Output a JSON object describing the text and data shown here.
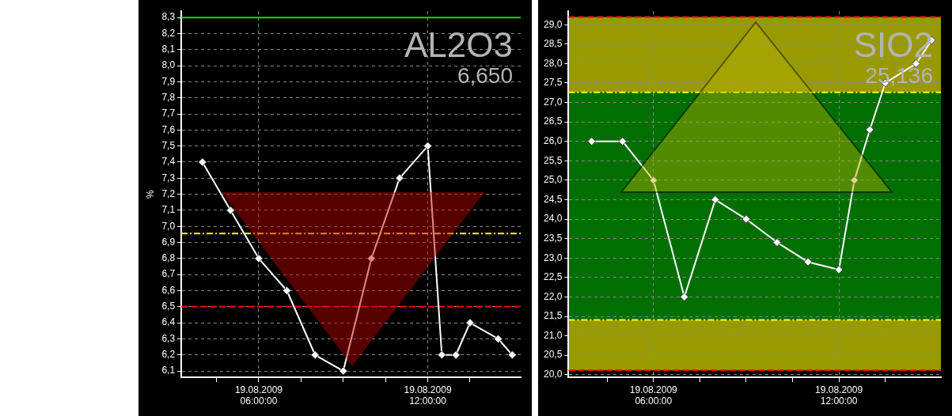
{
  "chart_data": [
    {
      "type": "line",
      "ylabel": "%",
      "annotations": [
        "AL2O3",
        "6,650"
      ],
      "grid": true,
      "marker": "diamond",
      "line_style": "solid",
      "x": [
        "2009-08-19T04:00",
        "2009-08-19T05:00",
        "2009-08-19T06:00",
        "2009-08-19T07:00",
        "2009-08-19T08:00",
        "2009-08-19T09:00",
        "2009-08-19T10:00",
        "2009-08-19T11:00",
        "2009-08-19T12:00",
        "2009-08-19T12:30",
        "2009-08-19T13:00",
        "2009-08-19T13:30",
        "2009-08-19T14:30",
        "2009-08-19T15:00"
      ],
      "series": [
        {
          "color": "#ffffff",
          "values": [
            7.4,
            7.1,
            6.8,
            6.6,
            6.2,
            6.1,
            6.8,
            7.3,
            7.5,
            6.2,
            6.2,
            6.4,
            6.3,
            6.2
          ]
        }
      ],
      "xlim": [
        "2009-08-19T03:15",
        "2009-08-19T15:18"
      ],
      "xticks": [
        {
          "value": "2009-08-19T04:30",
          "label": null
        },
        {
          "value": "2009-08-19T06:00",
          "label": "19.08.2009\n06:00:00"
        },
        {
          "value": "2009-08-19T07:30",
          "label": null
        },
        {
          "value": "2009-08-19T09:00",
          "label": null
        },
        {
          "value": "2009-08-19T10:30",
          "label": null
        },
        {
          "value": "2009-08-19T12:00",
          "label": "19.08.2009\n12:00:00"
        },
        {
          "value": "2009-08-19T13:30",
          "label": null
        }
      ],
      "ylim": [
        6.06,
        8.34
      ],
      "yticks": [
        {
          "value": 6.1,
          "label": "6,1"
        },
        {
          "value": 6.2,
          "label": "6,2"
        },
        {
          "value": 6.3,
          "label": "6,3"
        },
        {
          "value": 6.4,
          "label": "6,4"
        },
        {
          "value": 6.5,
          "label": "6,5"
        },
        {
          "value": 6.6,
          "label": "6,6"
        },
        {
          "value": 6.7,
          "label": "6,7"
        },
        {
          "value": 6.8,
          "label": "6,8"
        },
        {
          "value": 6.9,
          "label": "6,9"
        },
        {
          "value": 7.0,
          "label": "7,0"
        },
        {
          "value": 7.1,
          "label": "7,1"
        },
        {
          "value": 7.2,
          "label": "7,2"
        },
        {
          "value": 7.3,
          "label": "7,3"
        },
        {
          "value": 7.4,
          "label": "7,4"
        },
        {
          "value": 7.5,
          "label": "7,5"
        },
        {
          "value": 7.6,
          "label": "7,6"
        },
        {
          "value": 7.7,
          "label": "7,7"
        },
        {
          "value": 7.8,
          "label": "7,8"
        },
        {
          "value": 7.9,
          "label": "7,9"
        },
        {
          "value": 8.0,
          "label": "8,0"
        },
        {
          "value": 8.1,
          "label": "8,1"
        },
        {
          "value": 8.2,
          "label": "8,2"
        },
        {
          "value": 8.3,
          "label": "8,3"
        }
      ],
      "ref_lines": [
        {
          "axis": "y",
          "value": 8.3,
          "color": "#00e000",
          "line_style": "solid"
        },
        {
          "axis": "y",
          "value": 6.955,
          "color": "#ffff00",
          "line_style": "dashdot"
        },
        {
          "axis": "y",
          "value": 6.5,
          "color": "#ff0000",
          "line_style": "dashed"
        }
      ]
    },
    {
      "type": "line",
      "annotations": [
        "SIO2",
        "25,136"
      ],
      "grid": true,
      "marker": "diamond",
      "line_style": "solid",
      "x": [
        "2009-08-19T04:00",
        "2009-08-19T05:00",
        "2009-08-19T06:00",
        "2009-08-19T07:00",
        "2009-08-19T08:00",
        "2009-08-19T09:00",
        "2009-08-19T10:00",
        "2009-08-19T11:00",
        "2009-08-19T12:00",
        "2009-08-19T12:30",
        "2009-08-19T13:00",
        "2009-08-19T13:30",
        "2009-08-19T14:30",
        "2009-08-19T15:00"
      ],
      "series": [
        {
          "color": "#ffffff",
          "values": [
            26,
            26,
            25,
            22,
            24.5,
            24,
            23.4,
            22.9,
            22.7,
            25,
            26.3,
            27.5,
            28,
            28.6
          ]
        }
      ],
      "xlim": [
        "2009-08-19T03:15",
        "2009-08-19T15:18"
      ],
      "xticks": [
        {
          "value": "2009-08-19T04:30",
          "label": null
        },
        {
          "value": "2009-08-19T06:00",
          "label": "19.08.2009\n06:00:00"
        },
        {
          "value": "2009-08-19T07:30",
          "label": null
        },
        {
          "value": "2009-08-19T09:00",
          "label": null
        },
        {
          "value": "2009-08-19T10:30",
          "label": null
        },
        {
          "value": "2009-08-19T12:00",
          "label": "19.08.2009\n12:00:00"
        },
        {
          "value": "2009-08-19T13:30",
          "label": null
        }
      ],
      "ylim": [
        19.93,
        29.35
      ],
      "yticks": [
        {
          "value": 20,
          "label": "20,0"
        },
        {
          "value": 20.5,
          "label": "20,5"
        },
        {
          "value": 21,
          "label": "21,0"
        },
        {
          "value": 21.5,
          "label": "21,5"
        },
        {
          "value": 22,
          "label": "22,0"
        },
        {
          "value": 22.5,
          "label": "22,5"
        },
        {
          "value": 23,
          "label": "23,0"
        },
        {
          "value": 23.5,
          "label": "23,5"
        },
        {
          "value": 24,
          "label": "24,0"
        },
        {
          "value": 24.5,
          "label": "24,5"
        },
        {
          "value": 25,
          "label": "25,0"
        },
        {
          "value": 25.5,
          "label": "25,5"
        },
        {
          "value": 26,
          "label": "26,0"
        },
        {
          "value": 26.5,
          "label": "26,5"
        },
        {
          "value": 27,
          "label": "27,0"
        },
        {
          "value": 27.5,
          "label": "27,5"
        },
        {
          "value": 28,
          "label": "28,0"
        },
        {
          "value": 28.5,
          "label": "28,5"
        },
        {
          "value": 29,
          "label": "29,0"
        }
      ],
      "bands": [
        {
          "axis": "y",
          "from": 27.26,
          "to": 29.2,
          "color": "#999900"
        },
        {
          "axis": "y",
          "from": 21.41,
          "to": 27.26,
          "color": "#006e00"
        },
        {
          "axis": "y",
          "from": 20.11,
          "to": 21.41,
          "color": "#999900"
        }
      ],
      "ref_lines": [
        {
          "axis": "y",
          "value": 29.2,
          "color": "#ff0000",
          "line_style": "dashed"
        },
        {
          "axis": "y",
          "value": 27.26,
          "color": "#ffff00",
          "line_style": "dashdot"
        },
        {
          "axis": "y",
          "value": 21.41,
          "color": "#ffff00",
          "line_style": "dashdot"
        },
        {
          "axis": "y",
          "value": 20.11,
          "color": "#ff0000",
          "line_style": "dashed"
        }
      ]
    }
  ]
}
